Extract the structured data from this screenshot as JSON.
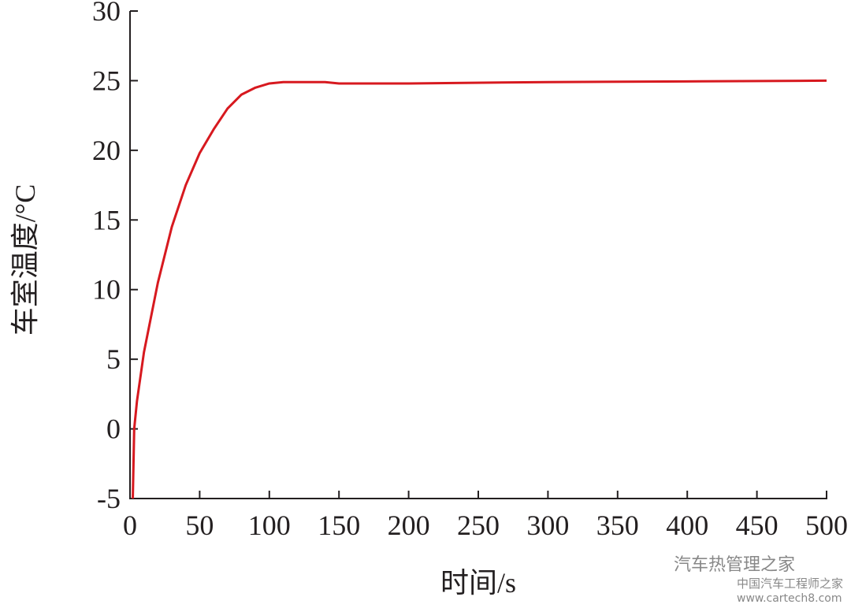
{
  "chart_data": {
    "type": "line",
    "x_label": "时间/s",
    "y_label": "车室温度/°C",
    "x": [
      2,
      3,
      5,
      10,
      15,
      20,
      30,
      40,
      50,
      60,
      70,
      80,
      90,
      100,
      110,
      120,
      130,
      140,
      150,
      200,
      300,
      400,
      500
    ],
    "series": [
      {
        "name": "车室温度",
        "color": "#d7191f",
        "values": [
          -5,
          0,
          2,
          5.5,
          8,
          10.5,
          14.5,
          17.5,
          19.8,
          21.5,
          23,
          24,
          24.5,
          24.8,
          24.9,
          24.9,
          24.9,
          24.9,
          24.8,
          24.8,
          24.9,
          24.95,
          25
        ]
      }
    ],
    "xlim": [
      0,
      500
    ],
    "xticks": [
      0,
      50,
      100,
      150,
      200,
      250,
      300,
      350,
      400,
      450,
      500
    ],
    "ylim": [
      -5,
      30
    ],
    "yticks": [
      -5,
      0,
      5,
      10,
      15,
      20,
      25,
      30
    ],
    "watermarks": [
      "汽车热管理之家",
      "中国汽车工程师之家",
      "www.cartech8.com"
    ]
  }
}
